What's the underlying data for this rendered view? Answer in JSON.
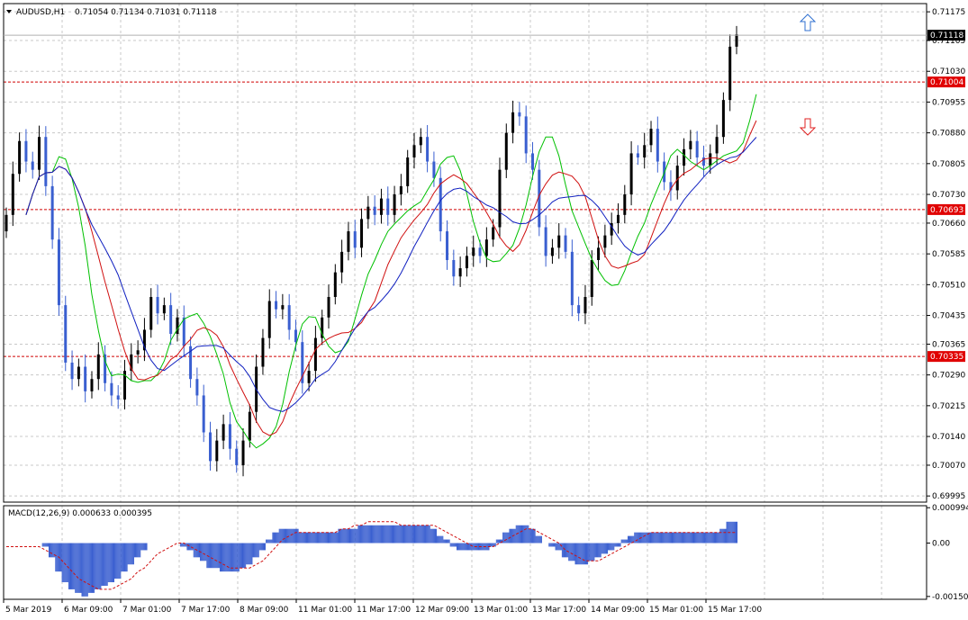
{
  "header": {
    "symbol": "AUDUSD,H1",
    "ohlc": "0.71054 0.71134 0.71031 0.71118",
    "menu_icon": "triangle-down-icon"
  },
  "colors": {
    "bull_candle": "#000000",
    "bear_candle": "#3a5fd0",
    "ma_fast": "#00c000",
    "ma_mid": "#d01010",
    "ma_slow": "#1020c0",
    "level_line": "#d00000",
    "level_label_bg": "#e00000",
    "macd_hist": "#3a5fd0",
    "macd_signal": "#d01010",
    "buy_arrow": "#3070d0",
    "sell_arrow": "#e02020"
  },
  "chart_data": {
    "type": "candlestick",
    "price_axis": {
      "ylim": [
        0.6998,
        0.71195
      ],
      "ticks": [
        "0.71175",
        "0.71105",
        "0.71030",
        "0.70955",
        "0.70880",
        "0.70805",
        "0.70730",
        "0.70660",
        "0.70585",
        "0.70510",
        "0.70435",
        "0.70365",
        "0.70290",
        "0.70215",
        "0.70140",
        "0.70070",
        "0.69995"
      ]
    },
    "current_price": "0.71118",
    "levels": [
      "0.71004",
      "0.70693",
      "0.70335"
    ],
    "time_labels": [
      "5 Mar 2019",
      "6 Mar 09:00",
      "7 Mar 01:00",
      "7 Mar 17:00",
      "8 Mar 09:00",
      "11 Mar 01:00",
      "11 Mar 17:00",
      "12 Mar 09:00",
      "13 Mar 01:00",
      "13 Mar 17:00",
      "14 Mar 09:00",
      "15 Mar 01:00",
      "15 Mar 17:00"
    ],
    "close_path": [
      0.7068,
      0.7078,
      0.7086,
      0.7081,
      0.7079,
      0.7087,
      0.7075,
      0.7062,
      0.7046,
      0.7032,
      0.7028,
      0.7031,
      0.7025,
      0.7028,
      0.7034,
      0.7027,
      0.7024,
      0.7023,
      0.703,
      0.7034,
      0.7035,
      0.704,
      0.7048,
      0.7044,
      0.7046,
      0.7039,
      0.7043,
      0.7036,
      0.7028,
      0.7024,
      0.7015,
      0.7008,
      0.7013,
      0.7017,
      0.7011,
      0.7007,
      0.7013,
      0.702,
      0.7031,
      0.7038,
      0.7047,
      0.7045,
      0.7046,
      0.704,
      0.7037,
      0.7027,
      0.703,
      0.7038,
      0.7043,
      0.7048,
      0.7054,
      0.7059,
      0.7064,
      0.706,
      0.7067,
      0.707,
      0.7068,
      0.7072,
      0.7068,
      0.7073,
      0.7075,
      0.7082,
      0.7085,
      0.7087,
      0.7081,
      0.7077,
      0.7064,
      0.7057,
      0.7053,
      0.7055,
      0.7058,
      0.706,
      0.7058,
      0.7062,
      0.7065,
      0.7079,
      0.7088,
      0.7093,
      0.7092,
      0.7083,
      0.7079,
      0.7065,
      0.7058,
      0.706,
      0.7063,
      0.7059,
      0.7046,
      0.7044,
      0.7048,
      0.7057,
      0.706,
      0.7063,
      0.7066,
      0.7068,
      0.7073,
      0.7083,
      0.7082,
      0.7085,
      0.7089,
      0.7081,
      0.7076,
      0.7074,
      0.708,
      0.7084,
      0.7086,
      0.7082,
      0.708,
      0.7083,
      0.7087,
      0.7096,
      0.7109,
      0.7112
    ]
  },
  "macd": {
    "label": "MACD(12,26,9) 0.000633 0.000395",
    "ticks": [
      "0.000994",
      "0.00",
      "-0.00150"
    ],
    "ylim": [
      -0.00158,
      0.00105
    ],
    "hist": [
      0,
      0,
      0,
      0,
      0,
      0,
      -0.0001,
      -0.0004,
      -0.0008,
      -0.0011,
      -0.0013,
      -0.0014,
      -0.0015,
      -0.0014,
      -0.0013,
      -0.0012,
      -0.0011,
      -0.001,
      -0.0008,
      -0.0006,
      -0.0004,
      -0.0002,
      0,
      0,
      0,
      0,
      0,
      -0.0001,
      -0.0002,
      -0.0004,
      -0.0005,
      -0.0007,
      -0.0007,
      -0.0008,
      -0.0008,
      -0.0008,
      -0.0007,
      -0.0006,
      -0.0004,
      -0.0002,
      0.0001,
      0.0003,
      0.0004,
      0.0004,
      0.0004,
      0.0003,
      0.0003,
      0.0003,
      0.0003,
      0.0003,
      0.0003,
      0.0004,
      0.0004,
      0.0004,
      0.0005,
      0.0005,
      0.0005,
      0.0005,
      0.0005,
      0.0005,
      0.0005,
      0.0005,
      0.0005,
      0.0005,
      0.0005,
      0.0004,
      0.0002,
      0.0001,
      -0.0001,
      -0.0002,
      -0.0002,
      -0.0002,
      -0.0002,
      -0.0002,
      -0.0001,
      0.0001,
      0.0003,
      0.0004,
      0.0005,
      0.0005,
      0.0004,
      0.0002,
      0,
      -0.0001,
      -0.0002,
      -0.0004,
      -0.0005,
      -0.0006,
      -0.0006,
      -0.0005,
      -0.0004,
      -0.0003,
      -0.0002,
      -0.0001,
      0.0001,
      0.0002,
      0.0003,
      0.0003,
      0.0003,
      0.0003,
      0.0003,
      0.0003,
      0.0003,
      0.0003,
      0.0003,
      0.0003,
      0.0003,
      0.0003,
      0.0003,
      0.0004,
      0.0006,
      0.0006
    ],
    "signal": [
      -0.0001,
      -0.0001,
      -0.0001,
      -0.0001,
      -0.0001,
      -0.0001,
      -0.0002,
      -0.0003,
      -0.0004,
      -0.0006,
      -0.0008,
      -0.001,
      -0.0011,
      -0.0012,
      -0.0013,
      -0.0013,
      -0.0013,
      -0.0012,
      -0.0011,
      -0.001,
      -0.0008,
      -0.0007,
      -0.0005,
      -0.0003,
      -0.0002,
      -0.0001,
      0,
      0,
      -0.0001,
      -0.0002,
      -0.0003,
      -0.0004,
      -0.0005,
      -0.0006,
      -0.0007,
      -0.0007,
      -0.0007,
      -0.0007,
      -0.0006,
      -0.0005,
      -0.0003,
      -0.0001,
      0.0001,
      0.0002,
      0.0003,
      0.0003,
      0.0003,
      0.0003,
      0.0003,
      0.0003,
      0.0003,
      0.0004,
      0.0004,
      0.0005,
      0.0005,
      0.0006,
      0.0006,
      0.0006,
      0.0006,
      0.0006,
      0.0005,
      0.0005,
      0.0005,
      0.0005,
      0.0005,
      0.0005,
      0.0004,
      0.0003,
      0.0002,
      0.0001,
      0,
      -0.0001,
      -0.0001,
      -0.0001,
      -0.0001,
      0,
      0.0001,
      0.0002,
      0.0003,
      0.0004,
      0.0004,
      0.0003,
      0.0002,
      0.0001,
      0,
      -0.0002,
      -0.0003,
      -0.0004,
      -0.0005,
      -0.0005,
      -0.0005,
      -0.0004,
      -0.0003,
      -0.0002,
      -0.0001,
      0,
      0.0001,
      0.0002,
      0.0003,
      0.0003,
      0.0003,
      0.0003,
      0.0003,
      0.0003,
      0.0003,
      0.0003,
      0.0003,
      0.0003,
      0.0003,
      0.0003,
      0.0003,
      0.0003
    ]
  }
}
